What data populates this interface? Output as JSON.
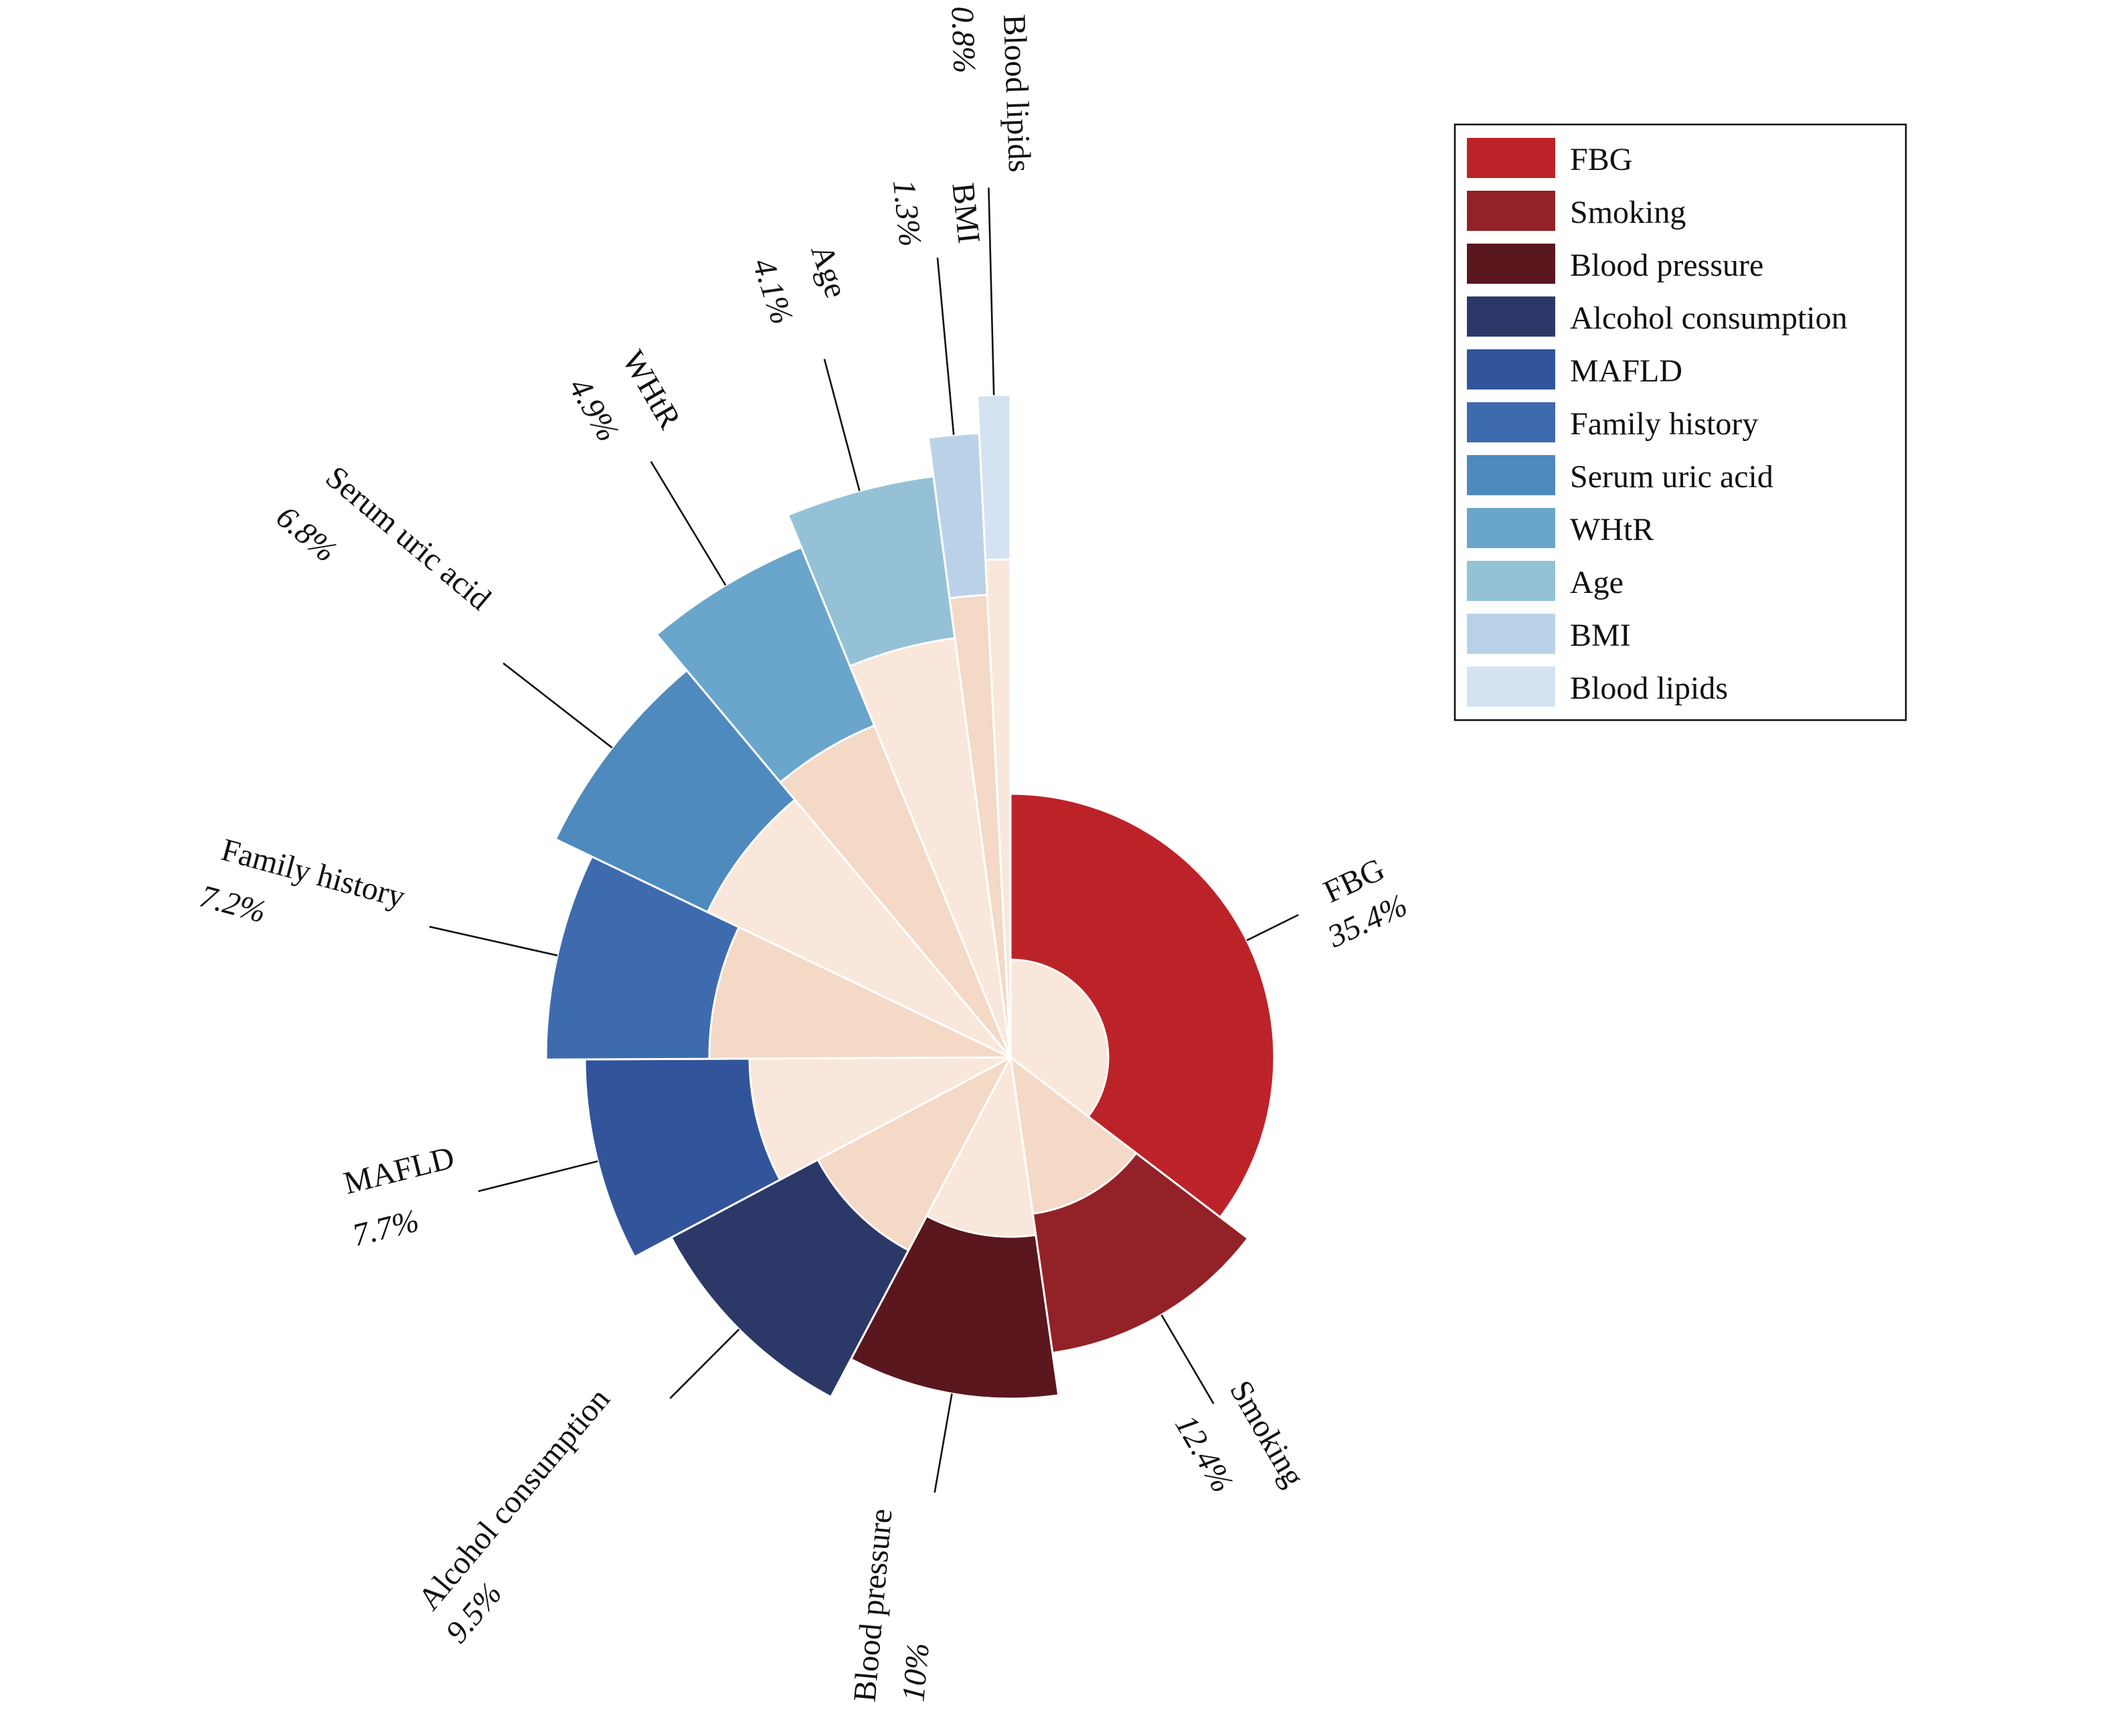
{
  "chart_data": {
    "type": "pie",
    "subtype": "nightingale-rose",
    "title": "",
    "unit": "%",
    "start": "top",
    "direction": "clockwise",
    "legend_position": "top-right",
    "series": [
      {
        "name": "FBG",
        "value": 35.4,
        "label": "35.4%",
        "color": "#bc2329",
        "inner_color": "#f9e7db"
      },
      {
        "name": "Smoking",
        "value": 12.4,
        "label": "12.4%",
        "color": "#922228",
        "inner_color": "#f3d9c6"
      },
      {
        "name": "Blood pressure",
        "value": 10,
        "label": "10%",
        "color": "#5a171d",
        "inner_color": "#f9e7db"
      },
      {
        "name": "Alcohol consumption",
        "value": 9.5,
        "label": "9.5%",
        "color": "#2c3868",
        "inner_color": "#f3d9c6"
      },
      {
        "name": "MAFLD",
        "value": 7.7,
        "label": "7.7%",
        "color": "#32549b",
        "inner_color": "#f9e7db"
      },
      {
        "name": "Family history",
        "value": 7.2,
        "label": "7.2%",
        "color": "#3e6bae",
        "inner_color": "#f3d9c6"
      },
      {
        "name": "Serum uric acid",
        "value": 6.8,
        "label": "6.8%",
        "color": "#4e8abd",
        "inner_color": "#f9e7db"
      },
      {
        "name": "WHtR",
        "value": 4.9,
        "label": "4.9%",
        "color": "#6aa6cb",
        "inner_color": "#f3d9c6"
      },
      {
        "name": "Age",
        "value": 4.1,
        "label": "4.1%",
        "color": "#95c1d6",
        "inner_color": "#f9e7db"
      },
      {
        "name": "BMI",
        "value": 1.3,
        "label": "1.3%",
        "color": "#bad2e7",
        "inner_color": "#f3d9c6"
      },
      {
        "name": "Blood lipids",
        "value": 0.8,
        "label": "0.8%",
        "color": "#d4e3f2",
        "inner_color": "#f9e7db"
      }
    ],
    "legend": [
      "FBG",
      "Smoking",
      "Blood pressure",
      "Alcohol consumption",
      "MAFLD",
      "Family history",
      "Serum uric acid",
      "WHtR",
      "Age",
      "BMI",
      "Blood lipids"
    ]
  }
}
